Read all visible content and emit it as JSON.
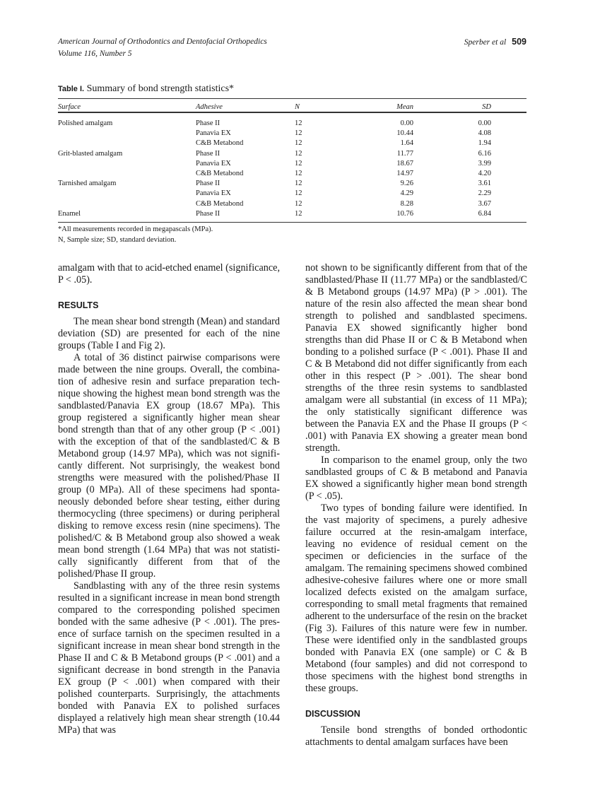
{
  "header": {
    "journal": "American Journal of Orthodontics and Dentofacial Orthopedics",
    "volume": "Volume 116, Number 5",
    "authors": "Sperber et al",
    "page_number": "509"
  },
  "table": {
    "label": "Table I.",
    "title": "Summary of bond strength statistics*",
    "columns": [
      "Surface",
      "Adhesive",
      "N",
      "Mean",
      "SD"
    ],
    "rows": [
      [
        "Polished amalgam",
        "Phase II",
        "12",
        "0.00",
        "0.00"
      ],
      [
        "",
        "Panavia EX",
        "12",
        "10.44",
        "4.08"
      ],
      [
        "",
        "C&B Metabond",
        "12",
        "1.64",
        "1.94"
      ],
      [
        "Grit-blasted amalgam",
        "Phase II",
        "12",
        "11.77",
        "6.16"
      ],
      [
        "",
        "Panavia EX",
        "12",
        "18.67",
        "3.99"
      ],
      [
        "",
        "C&B Metabond",
        "12",
        "14.97",
        "4.20"
      ],
      [
        "Tarnished amalgam",
        "Phase II",
        "12",
        "9.26",
        "3.61"
      ],
      [
        "",
        "Panavia EX",
        "12",
        "4.29",
        "2.29"
      ],
      [
        "",
        "C&B Metabond",
        "12",
        "8.28",
        "3.67"
      ],
      [
        "Enamel",
        "Phase II",
        "12",
        "10.76",
        "6.84"
      ]
    ],
    "footnotes": [
      "*All measurements recorded in megapascals (MPa).",
      "N, Sample size; SD, standard deviation."
    ]
  },
  "left_column": {
    "p0": "amalgam with that to acid-etched enamel (significance, P < .05).",
    "heading_results": "RESULTS",
    "p1": "The mean shear bond strength (Mean) and standard deviation (SD) are presented for each of the nine groups (Table I and Fig 2).",
    "p2": "A total of 36 distinct pairwise comparisons were made between the nine groups. Overall, the combina­tion of adhesive resin and surface preparation tech­nique showing the highest mean bond strength was the sandblasted/Panavia EX group (18.67 MPa). This group registered a significantly higher mean shear bond strength than that of any other group (P < .001) with the exception of that of the sandblasted/C & B Metabond group (14.97 MPa), which was not signifi­cantly different. Not surprisingly, the weakest bond strengths were measured with the polished/Phase II group (0 MPa). All of these specimens had sponta­neously debonded before shear testing, either during thermocycling (three specimens) or during peripheral disking to remove excess resin (nine specimens). The polished/C & B Metabond group also showed a weak mean bond strength (1.64 MPa) that was not statisti­cally significantly different from that of the polished/Phase II group.",
    "p3": "Sandblasting with any of the three resin systems resulted in a significant increase in mean bond strength compared to the corresponding polished specimen bonded with the same adhesive (P < .001). The pres­ence of surface tarnish on the specimen resulted in a significant increase in mean shear bond strength in the Phase II and C & B Metabond groups (P < .001) and a significant decrease in bond strength in the Panavia EX group (P < .001) when compared with their polished counterparts. Surprisingly, the attachments bonded with Panavia EX to polished surfaces displayed a rela­tively high mean shear strength (10.44 MPa) that was"
  },
  "right_column": {
    "p0": "not shown to be significantly different from that of the sandblasted/Phase II (11.77 MPa) or the sandblasted/C & B Metabond groups (14.97 MPa) (P > .001). The nature of the resin also affected the mean shear bond strength to polished and sandblasted specimens. Panavia EX showed significantly higher bond strengths than did Phase II or C & B Metabond when bonding to a polished surface (P < .001). Phase II and C & B Metabond did not differ significantly from each other in this respect (P > .001). The shear bond strengths of the three resin systems to sandblasted amalgam were all substantial (in excess of 11 MPa); the only statisti­cally significant difference was between the Panavia EX and the Phase II groups (P < .001) with Panavia EX showing a greater mean bond strength.",
    "p1": "In comparison to the enamel group, only the two sandblasted groups of C & B metabond and Panavia EX showed a significantly higher mean bond strength (P < .05).",
    "p2": "Two types of bonding failure were identified. In the vast majority of specimens, a purely adhesive failure occurred at the resin-amalgam interface, leaving no evidence of residual cement on the specimen or defi­ciencies in the surface of the amalgam. The remaining specimens showed combined adhesive-cohesive fail­ures where one or more small localized defects existed on the amalgam surface, corresponding to small metal fragments that remained adherent to the undersurface of the resin on the bracket (Fig 3). Failures of this nature were few in number. These were identified only in the sandblasted groups bonded with Panavia EX (one sample) or C & B Metabond (four samples) and did not correspond to those specimens with the highest bond strengths in these groups.",
    "heading_discussion": "DISCUSSION",
    "p3": "Tensile bond strengths of bonded orthodontic attachments to dental amalgam surfaces have been"
  }
}
